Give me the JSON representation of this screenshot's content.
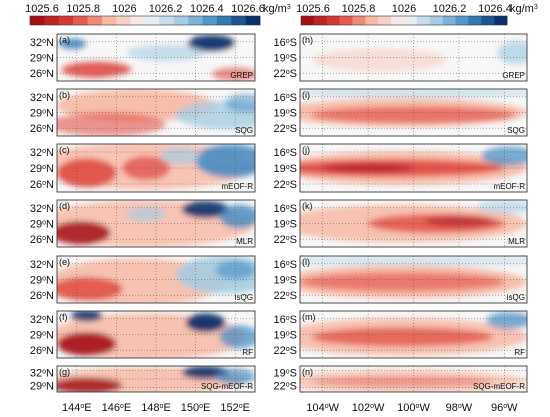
{
  "chart_data": {
    "type": "heatmap",
    "colorbars": [
      {
        "ticks": [
          "1025.6",
          "1025.8",
          "1026",
          "1026.2",
          "1026.4",
          "1026.6"
        ],
        "unit": "kg/m",
        "unit_sup": "3"
      },
      {
        "ticks": [
          "1025.6",
          "1025.8",
          "1026",
          "1026.2",
          "1026.4"
        ],
        "unit": "kg/m",
        "unit_sup": "3"
      }
    ],
    "left": {
      "y_ticks": [
        {
          "value": "32",
          "sup": "o",
          "hemi": "N"
        },
        {
          "value": "29",
          "sup": "o",
          "hemi": "N"
        },
        {
          "value": "26",
          "sup": "o",
          "hemi": "N"
        }
      ],
      "x_ticks": [
        {
          "value": "144",
          "sup": "o",
          "hemi": "E"
        },
        {
          "value": "146",
          "sup": "o",
          "hemi": "E"
        },
        {
          "value": "148",
          "sup": "o",
          "hemi": "E"
        },
        {
          "value": "150",
          "sup": "o",
          "hemi": "E"
        },
        {
          "value": "152",
          "sup": "o",
          "hemi": "E"
        }
      ],
      "panels": [
        {
          "label": "(a)",
          "method": "GREP"
        },
        {
          "label": "(b)",
          "method": "SQG"
        },
        {
          "label": "(c)",
          "method": "mEOF-R"
        },
        {
          "label": "(d)",
          "method": "MLR"
        },
        {
          "label": "(e)",
          "method": "isQG"
        },
        {
          "label": "(f)",
          "method": "RF"
        },
        {
          "label": "(g)",
          "method": "SQG-mEOF-R"
        }
      ]
    },
    "right": {
      "y_ticks": [
        {
          "value": "16",
          "sup": "o",
          "hemi": "S"
        },
        {
          "value": "19",
          "sup": "o",
          "hemi": "S"
        },
        {
          "value": "22",
          "sup": "o",
          "hemi": "S"
        }
      ],
      "x_ticks": [
        {
          "value": "104",
          "sup": "o",
          "hemi": "W"
        },
        {
          "value": "102",
          "sup": "o",
          "hemi": "W"
        },
        {
          "value": "100",
          "sup": "o",
          "hemi": "W"
        },
        {
          "value": "98",
          "sup": "o",
          "hemi": "W"
        },
        {
          "value": "96",
          "sup": "o",
          "hemi": "W"
        }
      ],
      "panels": [
        {
          "label": "(h)",
          "method": "GREP"
        },
        {
          "label": "(i)",
          "method": "SQG"
        },
        {
          "label": "(j)",
          "method": "mEOF-R"
        },
        {
          "label": "(k)",
          "method": "MLR"
        },
        {
          "label": "(l)",
          "method": "isQG"
        },
        {
          "label": "(m)",
          "method": "RF"
        },
        {
          "label": "(n)",
          "method": "SQG-mEOF-R"
        }
      ]
    },
    "colors": {
      "deep_red": "#a50f15",
      "red": "#e0443c",
      "light_red": "#f7b8a4",
      "white": "#f7f7f7",
      "light_blue": "#a6cde2",
      "blue": "#3f8bc4",
      "deep_blue": "#08306b",
      "grid": "#555555"
    }
  }
}
